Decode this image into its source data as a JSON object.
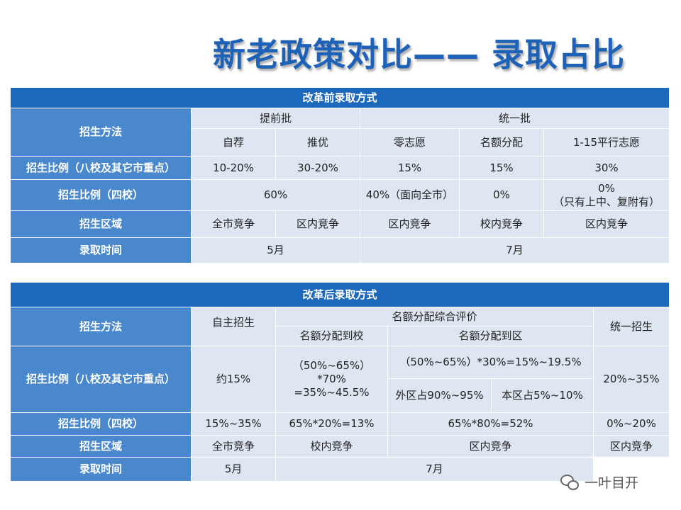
{
  "title": "新老政策对比—— 录取占比",
  "old": {
    "header": "改革前录取方式",
    "row_method": "招生方法",
    "group_early": "提前批",
    "group_unified": "统一批",
    "m1": "自荐",
    "m2": "推优",
    "m3": "零志愿",
    "m4": "名额分配",
    "m5": "1-15平行志愿",
    "row_ratio8": "招生比例（八校及其它市重点）",
    "r8_1": "10-20%",
    "r8_2": "30-20%",
    "r8_3": "15%",
    "r8_4": "15%",
    "r8_5": "30%",
    "row_ratio4": "招生比例（四校）",
    "r4_1": "60%",
    "r4_2": "40%（面向全市）",
    "r4_3": "0%",
    "r4_4a": "0%",
    "r4_4b": "（只有上中、复附有）",
    "row_area": "招生区域",
    "a1": "全市竞争",
    "a2": "区内竞争",
    "a3": "区内竞争",
    "a4": "校内竞争",
    "a5": "区内竞争",
    "row_time": "录取时间",
    "t1": "5月",
    "t2": "7月"
  },
  "new": {
    "header": "改革后录取方式",
    "row_method": "招生方法",
    "self": "自主招生",
    "quota_eval": "名额分配综合评价",
    "unified": "统一招生",
    "to_school": "名额分配到校",
    "to_district": "名额分配到区",
    "row_ratio8": "招生比例（八校及其它市重点）",
    "r8_self": "约15%",
    "r8_school_a": "（50%~65%）",
    "r8_school_b": "*70%",
    "r8_school_c": "=35%~45.5%",
    "r8_district": "（50%~65%）*30%=15%~19.5%",
    "r8_unified": "20%~35%",
    "outside": "外区占90%~95%",
    "inside": "本区占5%~10%",
    "row_ratio4": "招生比例（四校）",
    "r4_self": "15%~35%",
    "r4_school": "65%*20%=13%",
    "r4_district": "65%*80%=52%",
    "r4_unified": "0%~20%",
    "row_area": "招生区域",
    "a_self": "全市竞争",
    "a_school": "校内竞争",
    "a_district": "区内竞争",
    "a_unified": "区内竞争",
    "row_time": "录取时间",
    "t_self": "5月",
    "t_rest": "7月"
  },
  "watermark": {
    "text": "一叶目开",
    "icon": "wechat-icon"
  }
}
